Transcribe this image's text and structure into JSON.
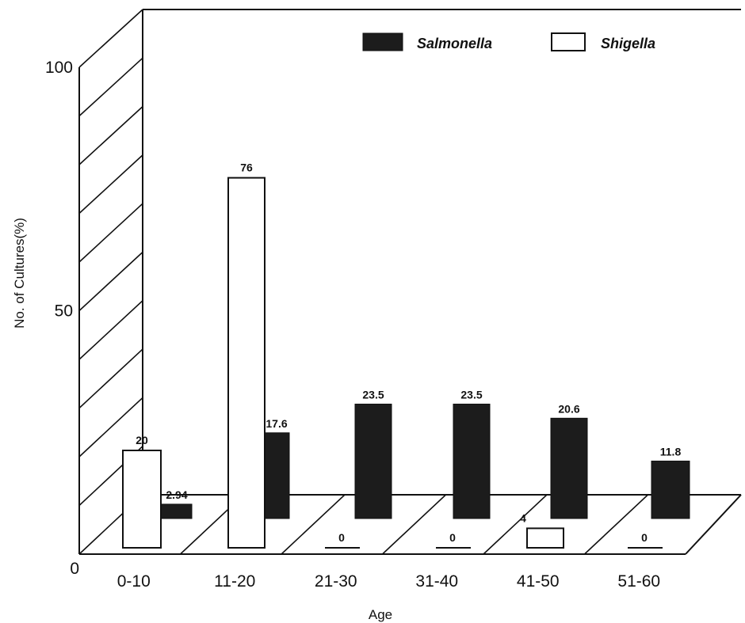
{
  "chart_data": {
    "type": "bar",
    "xlabel": "Age",
    "ylabel": "No. of Cultures(%)",
    "ylim": [
      0,
      100
    ],
    "y_ticks": [
      "0",
      "50",
      "100"
    ],
    "categories": [
      "0-10",
      "11-20",
      "21-30",
      "31-40",
      "41-50",
      "51-60"
    ],
    "series": [
      {
        "name": "Salmonella",
        "color": "#1c1c1c",
        "values": [
          2.94,
          17.6,
          23.5,
          23.5,
          20.6,
          11.8
        ],
        "labels": [
          "2.94",
          "17.6",
          "23.5",
          "23.5",
          "20.6",
          "11.8"
        ]
      },
      {
        "name": "Shigella",
        "color": "#ffffff",
        "values": [
          20,
          76,
          0,
          0,
          4,
          0
        ],
        "labels": [
          "20",
          "76",
          "0",
          "0",
          "4",
          "0"
        ]
      }
    ],
    "legend": {
      "position": "top-right"
    },
    "style": "3d-floor"
  }
}
